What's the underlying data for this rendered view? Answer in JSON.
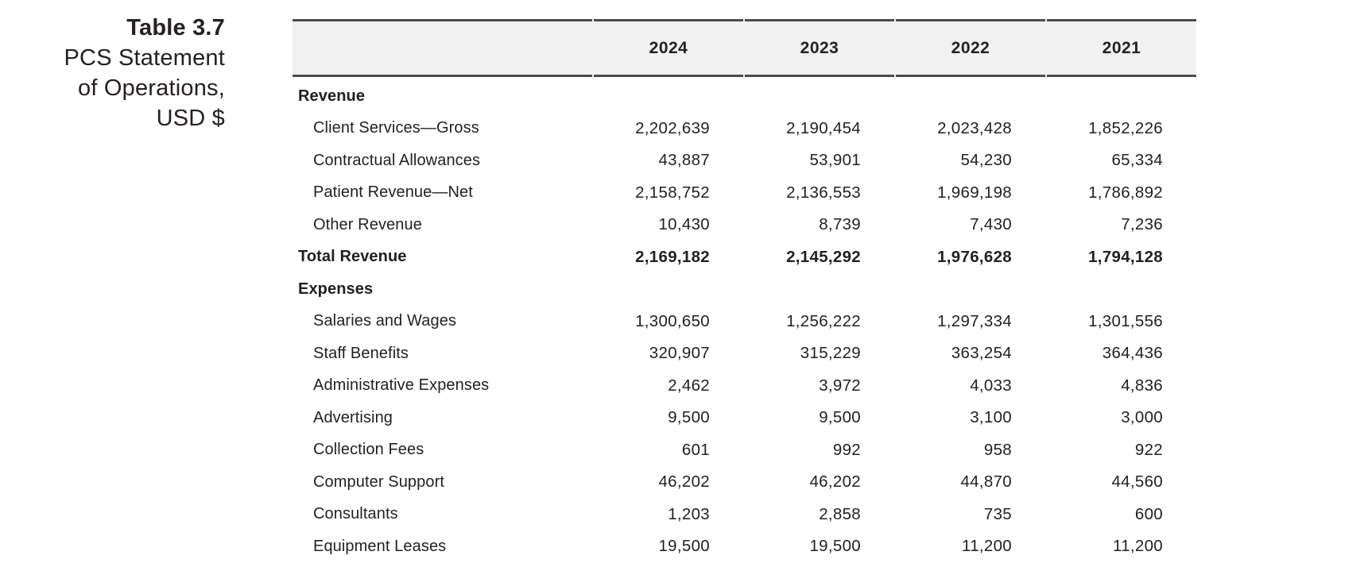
{
  "caption": {
    "title": "Table 3.7",
    "lines": [
      "PCS Statement",
      "of Operations,",
      "USD $"
    ]
  },
  "table": {
    "columns": [
      "2024",
      "2023",
      "2022",
      "2021"
    ],
    "rows": [
      {
        "label": "Revenue",
        "style": "section",
        "values": [
          "",
          "",
          "",
          ""
        ]
      },
      {
        "label": "Client Services—Gross",
        "style": "item",
        "values": [
          "2,202,639",
          "2,190,454",
          "2,023,428",
          "1,852,226"
        ]
      },
      {
        "label": "Contractual Allowances",
        "style": "item",
        "values": [
          "43,887",
          "53,901",
          "54,230",
          "65,334"
        ]
      },
      {
        "label": "Patient Revenue—Net",
        "style": "item",
        "values": [
          "2,158,752",
          "2,136,553",
          "1,969,198",
          "1,786,892"
        ]
      },
      {
        "label": "Other Revenue",
        "style": "item",
        "values": [
          "10,430",
          "8,739",
          "7,430",
          "7,236"
        ]
      },
      {
        "label": "Total Revenue",
        "style": "total",
        "values": [
          "2,169,182",
          "2,145,292",
          "1,976,628",
          "1,794,128"
        ]
      },
      {
        "label": "Expenses",
        "style": "section",
        "values": [
          "",
          "",
          "",
          ""
        ]
      },
      {
        "label": "Salaries and Wages",
        "style": "item",
        "values": [
          "1,300,650",
          "1,256,222",
          "1,297,334",
          "1,301,556"
        ]
      },
      {
        "label": "Staff Benefits",
        "style": "item",
        "values": [
          "320,907",
          "315,229",
          "363,254",
          "364,436"
        ]
      },
      {
        "label": "Administrative Expenses",
        "style": "item",
        "values": [
          "2,462",
          "3,972",
          "4,033",
          "4,836"
        ]
      },
      {
        "label": "Advertising",
        "style": "item",
        "values": [
          "9,500",
          "9,500",
          "3,100",
          "3,000"
        ]
      },
      {
        "label": "Collection Fees",
        "style": "item",
        "values": [
          "601",
          "992",
          "958",
          "922"
        ]
      },
      {
        "label": "Computer Support",
        "style": "item",
        "values": [
          "46,202",
          "46,202",
          "44,870",
          "44,560"
        ]
      },
      {
        "label": "Consultants",
        "style": "item",
        "values": [
          "1,203",
          "2,858",
          "735",
          "600"
        ]
      },
      {
        "label": "Equipment Leases",
        "style": "item",
        "values": [
          "19,500",
          "19,500",
          "11,200",
          "11,200"
        ]
      }
    ]
  },
  "colors": {
    "text": "#231f20",
    "table_border": "#4b4b4b",
    "header_background": "#f1f1f2",
    "page_background": "#ffffff"
  }
}
